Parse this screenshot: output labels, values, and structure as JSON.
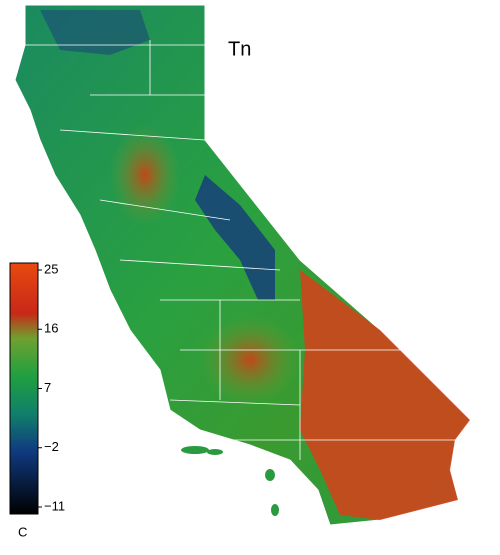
{
  "map": {
    "title": "Tn",
    "colorbar": {
      "lim": [
        -11,
        25
      ],
      "ticks": [
        25,
        16,
        7,
        {
          "value": -2,
          "label": "−2"
        },
        {
          "value": -11,
          "label": "−11"
        }
      ],
      "unit": "C"
    }
  }
}
